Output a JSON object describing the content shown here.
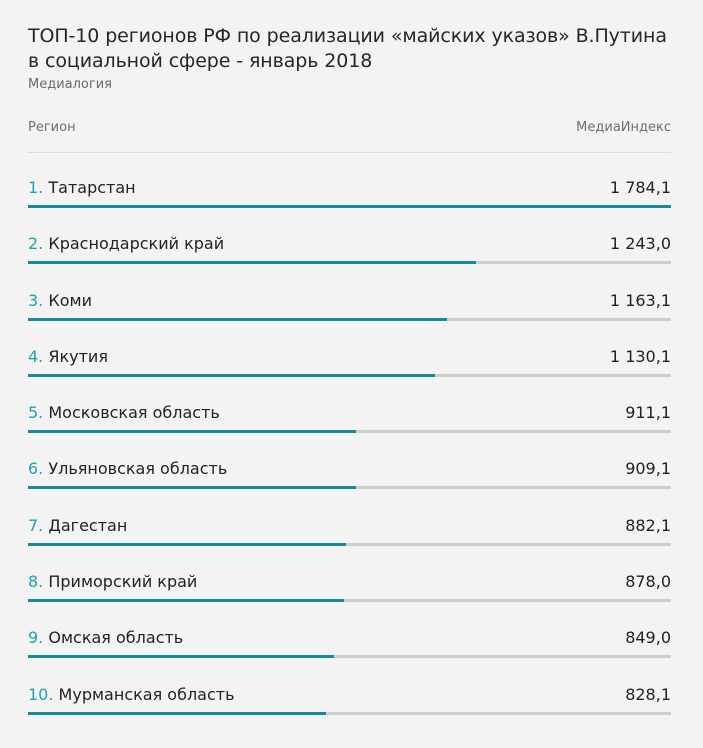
{
  "title": "ТОП-10 регионов РФ по реализации «майских указов» В.Путина в социальной сфере - январь 2018",
  "source": "Медиалогия",
  "columns": {
    "left": "Регион",
    "right": "МедиаИндекс"
  },
  "colors": {
    "bar": "#178a9a",
    "track": "#cfcfcf",
    "number": "#1da3b3"
  },
  "chart_data": {
    "type": "bar",
    "orientation": "horizontal",
    "title": "ТОП-10 регионов РФ по реализации «майских указов» В.Путина в социальной сфере - январь 2018",
    "xlim": [
      0,
      1784.1
    ],
    "categories": [
      "Татарстан",
      "Краснодарский край",
      "Коми",
      "Якутия",
      "Московская область",
      "Ульяновская область",
      "Дагестан",
      "Приморский край",
      "Омская область",
      "Мурманская область"
    ],
    "values": [
      1784.1,
      1243.0,
      1163.1,
      1130.1,
      911.1,
      909.1,
      882.1,
      878.0,
      849.0,
      828.1
    ],
    "ranks": [
      "1.",
      "2.",
      "3.",
      "4.",
      "5.",
      "6.",
      "7.",
      "8.",
      "9.",
      "10."
    ],
    "value_labels": [
      "1 784,1",
      "1 243,0",
      "1 163,1",
      "1 130,1",
      "911,1",
      "909,1",
      "882,1",
      "878,0",
      "849,0",
      "828,1"
    ]
  }
}
